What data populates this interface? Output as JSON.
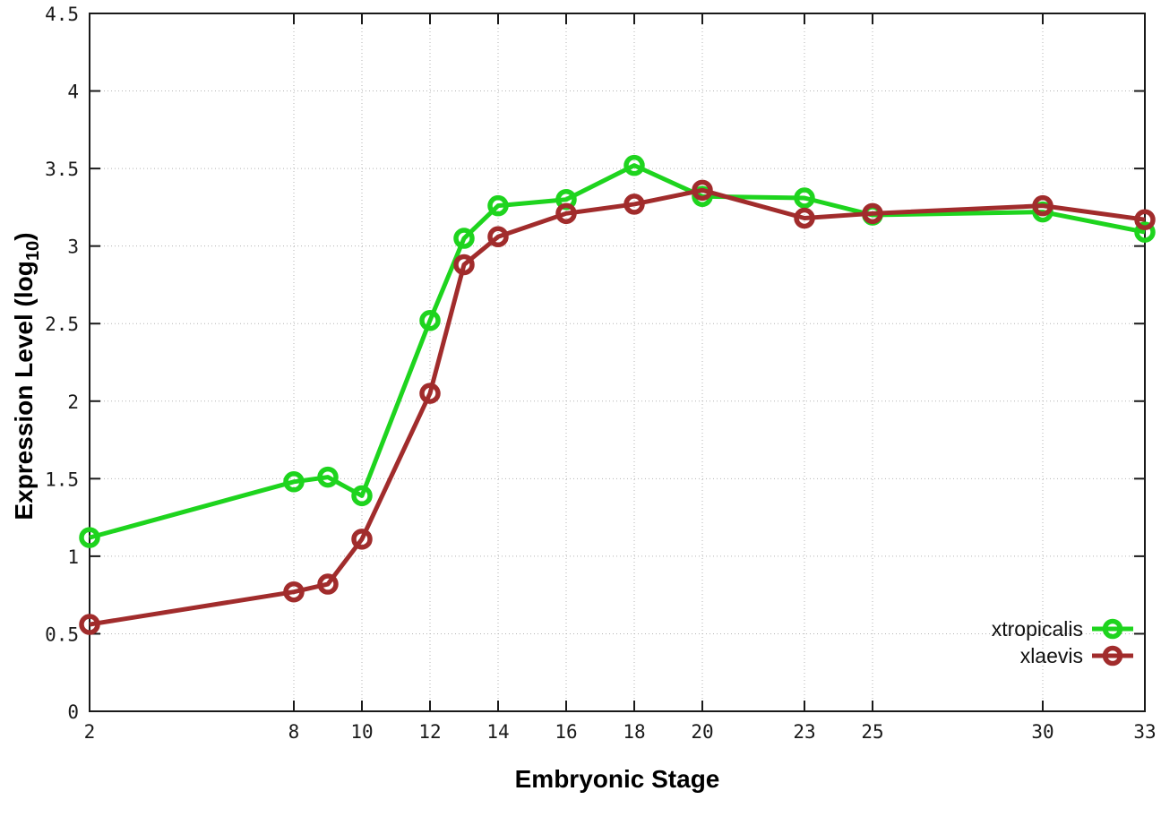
{
  "chart_data": {
    "type": "line",
    "title": "",
    "xlabel": "Embryonic Stage",
    "ylabel": "Expression Level (log10)",
    "ylabel_parts": {
      "main": "Expression Level (log",
      "sub": "10",
      "close": ")"
    },
    "xlim": [
      2,
      33
    ],
    "ylim": [
      0,
      4.5
    ],
    "xticks": [
      2,
      8,
      10,
      12,
      14,
      16,
      18,
      20,
      23,
      25,
      30,
      33
    ],
    "xtick_labels": [
      "2",
      "8",
      "10",
      "12",
      "14",
      "16",
      "18",
      "20",
      "23",
      "25",
      "30",
      "33"
    ],
    "yticks": [
      0,
      0.5,
      1,
      1.5,
      2,
      2.5,
      3,
      3.5,
      4,
      4.5
    ],
    "ytick_labels": [
      "0",
      "0.5",
      "1",
      "1.5",
      "2",
      "2.5",
      "3",
      "3.5",
      "4",
      "4.5"
    ],
    "grid": true,
    "grid_style": "dotted",
    "legend_position": "bottom-right",
    "marker": "open-circle",
    "x": [
      2,
      8,
      9,
      10,
      12,
      13,
      14,
      16,
      18,
      20,
      23,
      25,
      30,
      33
    ],
    "series": [
      {
        "name": "xtropicalis",
        "color": "#1ed41e",
        "values": [
          1.12,
          1.48,
          1.51,
          1.39,
          2.52,
          3.05,
          3.26,
          3.3,
          3.52,
          3.32,
          3.31,
          3.2,
          3.22,
          3.09
        ]
      },
      {
        "name": "xlaevis",
        "color": "#a12c2c",
        "values": [
          0.56,
          0.77,
          0.82,
          1.11,
          2.05,
          2.88,
          3.06,
          3.21,
          3.27,
          3.36,
          3.18,
          3.21,
          3.26,
          3.17
        ]
      }
    ],
    "colors": {
      "grid": "#b3b3b3",
      "axis": "#1a1a1a",
      "background": "#ffffff"
    }
  }
}
